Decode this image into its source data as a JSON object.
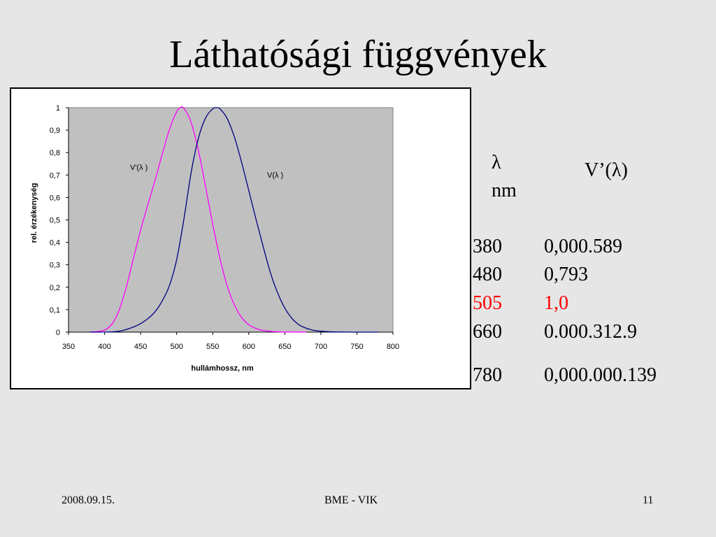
{
  "slide": {
    "title": "Láthatósági függvények",
    "date": "2008.09.15.",
    "organization": "BME - VIK",
    "page_number": "11"
  },
  "table": {
    "header_symbol": "λ",
    "header_unit": "nm",
    "header_value": "V’(λ)",
    "rows": [
      {
        "wavelength": "380",
        "value": "0,000.589"
      },
      {
        "wavelength": "480",
        "value": "0,793"
      },
      {
        "wavelength": "505",
        "value": "1,0",
        "highlight": true
      },
      {
        "wavelength": "660",
        "value": "0.000.312.9"
      },
      {
        "wavelength": "780",
        "value": "0,000.000.139"
      }
    ],
    "highlight_color": "#ff0000"
  },
  "chart_data": {
    "type": "line",
    "title": "",
    "xlabel": "hullámhossz, nm",
    "ylabel": "rel. érzékenység",
    "xlim": [
      350,
      800
    ],
    "ylim": [
      0,
      1
    ],
    "x_ticks": [
      "350",
      "400",
      "450",
      "500",
      "550",
      "600",
      "650",
      "700",
      "750",
      "800"
    ],
    "y_ticks": [
      "0",
      "0,1",
      "0,2",
      "0,3",
      "0,4",
      "0,5",
      "0,6",
      "0,7",
      "0,8",
      "0,9",
      "1"
    ],
    "grid": false,
    "plot_background": "#c0c0c0",
    "series": [
      {
        "name": "V'(λ )",
        "color": "#ff00ff",
        "x": [
          380,
          390,
          400,
          410,
          420,
          430,
          440,
          450,
          460,
          470,
          480,
          490,
          500,
          505,
          510,
          520,
          530,
          540,
          550,
          560,
          570,
          580,
          590,
          600,
          610,
          620,
          630,
          640,
          650,
          660,
          670,
          680
        ],
        "y": [
          0.0006,
          0.0022,
          0.0093,
          0.0348,
          0.0966,
          0.1998,
          0.3281,
          0.455,
          0.567,
          0.676,
          0.793,
          0.904,
          0.982,
          1.0,
          0.997,
          0.935,
          0.811,
          0.65,
          0.481,
          0.3288,
          0.2076,
          0.1212,
          0.0655,
          0.0332,
          0.0159,
          0.0074,
          0.0033,
          0.0015,
          0.0007,
          0.0003,
          0.0001,
          0.0001
        ]
      },
      {
        "name": "V(λ )",
        "color": "#000080",
        "x": [
          380,
          390,
          400,
          410,
          420,
          430,
          440,
          450,
          460,
          470,
          480,
          490,
          500,
          510,
          520,
          530,
          540,
          550,
          555,
          560,
          570,
          580,
          590,
          600,
          610,
          620,
          630,
          640,
          650,
          660,
          670,
          680,
          690,
          700,
          710,
          720,
          730,
          740,
          750,
          760,
          770,
          780
        ],
        "y": [
          0.0,
          0.0001,
          0.0004,
          0.0012,
          0.004,
          0.0116,
          0.023,
          0.038,
          0.06,
          0.091,
          0.139,
          0.208,
          0.323,
          0.503,
          0.71,
          0.862,
          0.954,
          0.995,
          1.0,
          0.995,
          0.952,
          0.87,
          0.757,
          0.631,
          0.503,
          0.381,
          0.265,
          0.175,
          0.107,
          0.061,
          0.032,
          0.017,
          0.0082,
          0.0041,
          0.0021,
          0.001,
          0.0005,
          0.0002,
          0.0001,
          0.0001,
          0.0,
          0.0
        ]
      }
    ]
  }
}
